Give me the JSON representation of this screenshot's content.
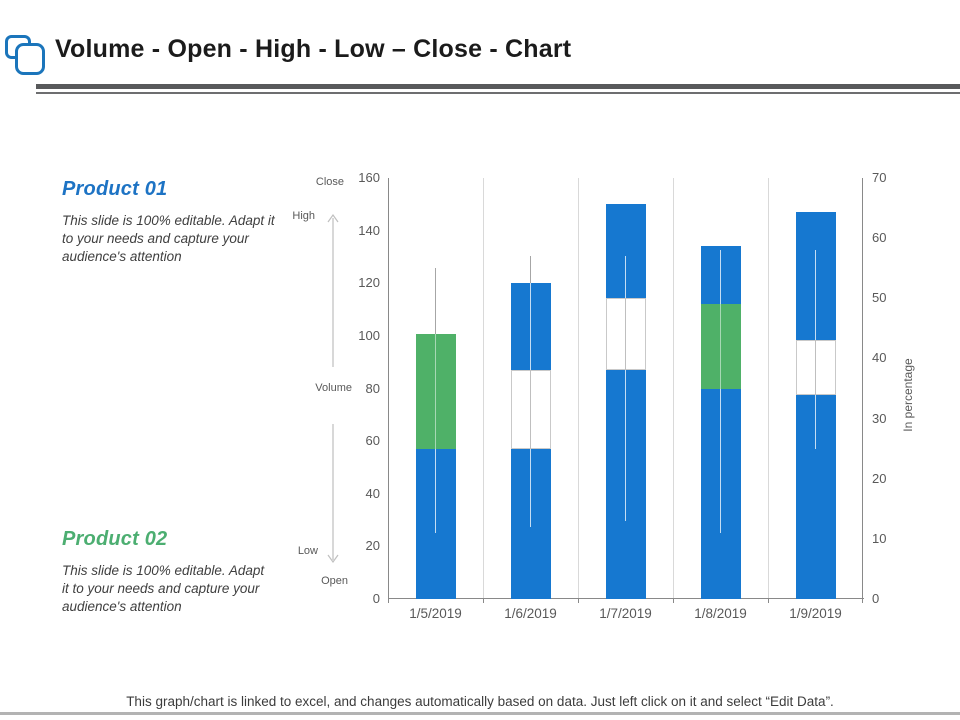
{
  "slide": {
    "title": "Volume - Open - High - Low – Close - Chart",
    "footer": "This graph/chart is linked to excel, and changes automatically based on data. Just left click on it and select “Edit Data”."
  },
  "products": [
    {
      "heading": "Product 01",
      "heading_color": "#1d73c4",
      "description_lines": [
        "This slide is 100% editable. Adapt it",
        "to your needs and capture your",
        "audience's attention"
      ]
    },
    {
      "heading": "Product 02",
      "heading_color": "#4cae71",
      "description_lines": [
        "This slide is 100% editable. Adapt",
        "it to your needs and capture your",
        "audience's attention"
      ]
    }
  ],
  "chart_annotations": {
    "close": "Close",
    "high": "High",
    "volume": "Volume",
    "low": "Low",
    "open": "Open"
  },
  "chart_data": {
    "type": "stock-volume-open-high-low-close",
    "categories": [
      "1/5/2019",
      "1/6/2019",
      "1/7/2019",
      "1/8/2019",
      "1/9/2019"
    ],
    "series": [
      {
        "name": "Volume",
        "axis": "primary",
        "values": [
          57,
          120,
          150,
          134,
          147
        ]
      },
      {
        "name": "Open",
        "axis": "secondary",
        "values": [
          44,
          25,
          38,
          49,
          34
        ]
      },
      {
        "name": "High",
        "axis": "secondary",
        "values": [
          55,
          57,
          57,
          58,
          58
        ]
      },
      {
        "name": "Low",
        "axis": "secondary",
        "values": [
          11,
          12,
          13,
          11,
          25
        ]
      },
      {
        "name": "Close",
        "axis": "secondary",
        "values": [
          25,
          38,
          50,
          35,
          43
        ]
      }
    ],
    "primary_axis": {
      "min": 0,
      "max": 160,
      "step": 20,
      "tick_labels": [
        "160",
        "140",
        "120",
        "100",
        "80",
        "60",
        "40",
        "20",
        "0"
      ]
    },
    "secondary_axis": {
      "min": 0,
      "max": 70,
      "step": 10,
      "tick_labels": [
        "70",
        "60",
        "50",
        "40",
        "30",
        "20",
        "10",
        "0"
      ],
      "title": "In percentage"
    },
    "legend": "none",
    "gridlines": "vertical-only",
    "colors": {
      "volume_bar": "#1678d0",
      "down_box": "#4fb168",
      "up_box": "#ffffff",
      "up_box_border": "#c9c9c9",
      "whisker_on_white": "#a6a6a6",
      "whisker_on_box": "#bfbfbf",
      "gridline": "#d9d9d9",
      "axis_line": "#898989"
    }
  }
}
